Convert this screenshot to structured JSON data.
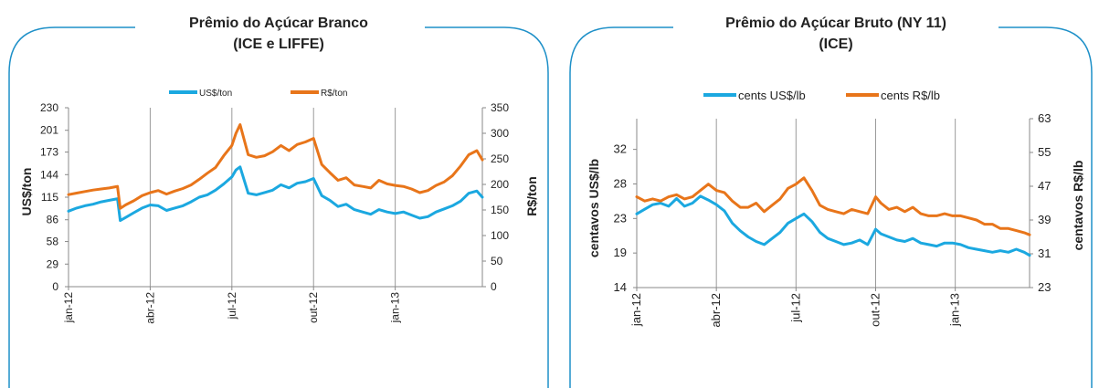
{
  "colors": {
    "frame": "#1e90c8",
    "usd": "#1ba8e0",
    "brl": "#e8751a",
    "grid": "#9a9a9a"
  },
  "chart_data": [
    {
      "type": "line",
      "title_line1": "Prêmio do Açúcar Branco",
      "title_line2": "(ICE e LIFFE)",
      "legend": {
        "placement": "top",
        "entries": [
          "US$/ton",
          "R$/ton"
        ]
      },
      "ylabel": "US$/ton",
      "y2label": "R$/ton",
      "ylim": [
        0,
        230
      ],
      "y2lim": [
        0,
        350
      ],
      "yticks": [
        "0",
        "29",
        "58",
        "86",
        "115",
        "144",
        "173",
        "201",
        "230"
      ],
      "y2ticks": [
        "0",
        "50",
        "100",
        "150",
        "200",
        "250",
        "300",
        "350"
      ],
      "xticks": [
        "jan-12",
        "abr-12",
        "jul-12",
        "out-12",
        "jan-13"
      ],
      "grid": "vertical",
      "x_tick_pos": [
        0,
        3,
        6,
        9,
        12
      ],
      "x_max": 15.2,
      "series": [
        {
          "name": "US$/ton",
          "axis": "left",
          "color_key": "usd",
          "x": [
            0,
            0.3,
            0.6,
            0.9,
            1.2,
            1.5,
            1.8,
            1.9,
            2.1,
            2.4,
            2.7,
            3.0,
            3.3,
            3.6,
            3.9,
            4.2,
            4.5,
            4.8,
            5.1,
            5.4,
            5.7,
            6.0,
            6.15,
            6.3,
            6.6,
            6.9,
            7.2,
            7.5,
            7.8,
            8.1,
            8.4,
            8.7,
            9.0,
            9.3,
            9.6,
            9.9,
            10.2,
            10.5,
            10.8,
            11.1,
            11.4,
            11.7,
            12.0,
            12.3,
            12.6,
            12.9,
            13.2,
            13.5,
            13.8,
            14.1,
            14.4,
            14.7,
            15.0,
            15.2
          ],
          "values": [
            97,
            101,
            104,
            106,
            109,
            111,
            113,
            85,
            89,
            95,
            101,
            105,
            104,
            98,
            101,
            104,
            109,
            115,
            118,
            124,
            132,
            141,
            150,
            154,
            120,
            118,
            121,
            124,
            131,
            127,
            133,
            135,
            139,
            117,
            111,
            103,
            106,
            99,
            96,
            93,
            99,
            96,
            94,
            96,
            92,
            88,
            90,
            96,
            100,
            104,
            110,
            120,
            123,
            115
          ]
        },
        {
          "name": "R$/ton",
          "axis": "right",
          "color_key": "brl",
          "x": [
            0,
            0.3,
            0.6,
            0.9,
            1.2,
            1.5,
            1.8,
            1.9,
            2.1,
            2.4,
            2.7,
            3.0,
            3.3,
            3.6,
            3.9,
            4.2,
            4.5,
            4.8,
            5.1,
            5.4,
            5.7,
            6.0,
            6.15,
            6.3,
            6.6,
            6.9,
            7.2,
            7.5,
            7.8,
            8.1,
            8.4,
            8.7,
            9.0,
            9.3,
            9.6,
            9.9,
            10.2,
            10.5,
            10.8,
            11.1,
            11.4,
            11.7,
            12.0,
            12.3,
            12.6,
            12.9,
            13.2,
            13.5,
            13.8,
            14.1,
            14.4,
            14.7,
            15.0,
            15.2
          ],
          "values": [
            180,
            183,
            186,
            189,
            191,
            193,
            196,
            153,
            160,
            168,
            178,
            184,
            188,
            181,
            187,
            192,
            199,
            210,
            222,
            233,
            256,
            276,
            300,
            317,
            258,
            253,
            256,
            264,
            276,
            266,
            278,
            283,
            290,
            239,
            223,
            208,
            213,
            199,
            196,
            193,
            208,
            201,
            198,
            196,
            191,
            184,
            188,
            198,
            205,
            217,
            236,
            258,
            266,
            248
          ]
        }
      ]
    },
    {
      "type": "line",
      "title_line1": "Prêmio do Açúcar Bruto (NY 11)",
      "title_line2": "(ICE)",
      "legend": {
        "placement": "top",
        "entries": [
          "cents US$/lb",
          "cents R$/lb"
        ]
      },
      "ylabel": "centavos  US$/lb",
      "y2label": "centavos  R$/lb",
      "ylim": [
        14,
        36
      ],
      "y2lim": [
        23,
        63
      ],
      "yticks": [
        "14",
        "19",
        "23",
        "28",
        "32"
      ],
      "yticks_values": [
        14,
        18.5,
        23,
        27.5,
        32
      ],
      "y2ticks": [
        "23",
        "31",
        "39",
        "47",
        "55",
        "63"
      ],
      "xticks": [
        "jan-12",
        "abr-12",
        "jul-12",
        "out-12",
        "jan-13"
      ],
      "grid": "vertical",
      "x_tick_pos": [
        0,
        3,
        6,
        9,
        12
      ],
      "x_max": 14.8,
      "series": [
        {
          "name": "cents US$/lb",
          "axis": "left",
          "color_key": "usd",
          "x": [
            0,
            0.3,
            0.6,
            0.9,
            1.2,
            1.5,
            1.8,
            2.1,
            2.4,
            2.7,
            3.0,
            3.3,
            3.6,
            3.9,
            4.2,
            4.5,
            4.8,
            5.1,
            5.4,
            5.7,
            6.0,
            6.3,
            6.6,
            6.9,
            7.2,
            7.5,
            7.8,
            8.1,
            8.4,
            8.7,
            9.0,
            9.2,
            9.5,
            9.8,
            10.1,
            10.4,
            10.7,
            11.0,
            11.3,
            11.6,
            11.9,
            12.2,
            12.5,
            12.8,
            13.1,
            13.4,
            13.7,
            14.0,
            14.3,
            14.6,
            14.8
          ],
          "values": [
            23.6,
            24.2,
            24.8,
            25.0,
            24.6,
            25.6,
            24.6,
            25.0,
            25.9,
            25.4,
            24.8,
            24.0,
            22.4,
            21.4,
            20.6,
            20.0,
            19.6,
            20.4,
            21.2,
            22.4,
            23.0,
            23.6,
            22.6,
            21.2,
            20.4,
            20.0,
            19.6,
            19.8,
            20.2,
            19.6,
            21.6,
            21.0,
            20.6,
            20.2,
            20.0,
            20.4,
            19.8,
            19.6,
            19.4,
            19.8,
            19.8,
            19.6,
            19.2,
            19.0,
            18.8,
            18.6,
            18.8,
            18.6,
            19.0,
            18.6,
            18.2
          ]
        },
        {
          "name": "cents R$/lb",
          "axis": "right",
          "color_key": "brl",
          "x": [
            0,
            0.3,
            0.6,
            0.9,
            1.2,
            1.5,
            1.8,
            2.1,
            2.4,
            2.7,
            3.0,
            3.3,
            3.6,
            3.9,
            4.2,
            4.5,
            4.8,
            5.1,
            5.4,
            5.7,
            6.0,
            6.3,
            6.6,
            6.9,
            7.2,
            7.5,
            7.8,
            8.1,
            8.4,
            8.7,
            9.0,
            9.2,
            9.5,
            9.8,
            10.1,
            10.4,
            10.7,
            11.0,
            11.3,
            11.6,
            11.9,
            12.2,
            12.5,
            12.8,
            13.1,
            13.4,
            13.7,
            14.0,
            14.3,
            14.6,
            14.8
          ],
          "values": [
            44.5,
            43.5,
            44.0,
            43.5,
            44.5,
            45.0,
            44.0,
            44.5,
            46.0,
            47.5,
            46.0,
            45.5,
            43.5,
            42.0,
            42.0,
            43.0,
            41.0,
            42.5,
            44.0,
            46.5,
            47.5,
            49.0,
            46.0,
            42.5,
            41.5,
            41.0,
            40.5,
            41.5,
            41.0,
            40.5,
            44.5,
            43.0,
            41.5,
            42.0,
            41.0,
            42.0,
            40.5,
            40.0,
            40.0,
            40.5,
            40.0,
            40.0,
            39.5,
            39.0,
            38.0,
            38.0,
            37.0,
            37.0,
            36.5,
            36.0,
            35.5
          ]
        }
      ]
    }
  ]
}
